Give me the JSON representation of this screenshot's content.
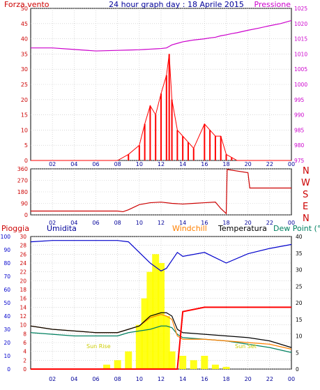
{
  "header": {
    "left_label": "Forza vento",
    "title": "24 hour graph day : 18 Aprile 2015",
    "right_label": "Pressione"
  },
  "x_ticks": [
    "02",
    "04",
    "06",
    "08",
    "10",
    "12",
    "14",
    "16",
    "18",
    "20",
    "22",
    "00"
  ],
  "colors": {
    "wind": "#ff0000",
    "wind_avg": "#0000cc",
    "wind_calm": "#008000",
    "pressure": "#cc00cc",
    "direction": "#cc0000",
    "rain": "#ff0000",
    "humidity": "#0000cc",
    "windchill": "#ff8000",
    "temperature": "#000000",
    "dewpoint": "#008060",
    "solar": "#ffff00",
    "grid": "#c0c0c0"
  },
  "chart_data": [
    {
      "type": "line",
      "title": "Forza vento / Pressione",
      "x": [
        "00",
        "02",
        "04",
        "06",
        "08",
        "09",
        "10",
        "10:30",
        "11",
        "11:30",
        "12",
        "12:30",
        "12:45",
        "13",
        "13:30",
        "14",
        "14:30",
        "15",
        "16",
        "16:30",
        "17",
        "17:30",
        "18",
        "18:30",
        "19",
        "20",
        "21",
        "22",
        "23",
        "24"
      ],
      "series": [
        {
          "name": "Forza vento",
          "axis": "left",
          "values": [
            0,
            0,
            0,
            0,
            0,
            2,
            5,
            12,
            18,
            15,
            22,
            28,
            35,
            20,
            10,
            8,
            6,
            4,
            12,
            10,
            8,
            8,
            2,
            1,
            0,
            0,
            0,
            0,
            0,
            0
          ]
        },
        {
          "name": "Pressione",
          "axis": "right",
          "values": [
            1012,
            1012,
            1011.5,
            1011,
            1011.2,
            1011.3,
            1011.4,
            1011.5,
            1011.6,
            1011.7,
            1011.8,
            1012,
            1012.5,
            1013,
            1013.5,
            1014,
            1014.3,
            1014.6,
            1015,
            1015.3,
            1015.5,
            1016,
            1016.3,
            1016.7,
            1017,
            1017.8,
            1018.5,
            1019.3,
            1020,
            1021
          ]
        }
      ],
      "yleft_ticks": [
        "0",
        "5",
        "10",
        "15",
        "20",
        "25",
        "30",
        "35",
        "40",
        "45",
        "50"
      ],
      "yright_ticks": [
        "975",
        "980",
        "985",
        "990",
        "995",
        "1000",
        "1005",
        "1010",
        "1015",
        "1020",
        "1025"
      ],
      "ylim_left": [
        0,
        50
      ],
      "ylim_right": [
        975,
        1025
      ]
    },
    {
      "type": "line",
      "title": "Direzione vento",
      "x": [
        "00",
        "08",
        "08:30",
        "09",
        "10",
        "11",
        "12",
        "13",
        "14",
        "15",
        "16",
        "17",
        "17:30",
        "18",
        "18:05",
        "20",
        "20:10",
        "24"
      ],
      "series": [
        {
          "name": "Direzione",
          "values": [
            30,
            30,
            25,
            40,
            80,
            95,
            100,
            90,
            85,
            90,
            95,
            100,
            50,
            10,
            355,
            330,
            210,
            210
          ]
        }
      ],
      "y_ticks": [
        "0",
        "90",
        "180",
        "270",
        "360"
      ],
      "ylim": [
        0,
        360
      ],
      "compass": [
        "N",
        "W",
        "S",
        "E",
        "N"
      ]
    },
    {
      "type": "line",
      "title": "Pioggia / Umidita / Temperatura",
      "series_labels": [
        "Pioggia",
        "Umidita",
        "Windchill",
        "Temperatura",
        "Dew Point (°C"
      ],
      "x": [
        "00",
        "02",
        "04",
        "06",
        "08",
        "09",
        "10",
        "11",
        "12",
        "12:30",
        "13",
        "13:30",
        "14",
        "16",
        "18",
        "20",
        "22",
        "24"
      ],
      "series": [
        {
          "name": "Umidita",
          "axis": "far-left",
          "values": [
            96,
            97,
            97,
            97,
            97,
            96,
            88,
            80,
            74,
            76,
            82,
            88,
            85,
            88,
            80,
            87,
            91,
            94
          ]
        },
        {
          "name": "Temperatura",
          "axis": "right",
          "values": [
            13,
            12,
            11.5,
            11,
            11,
            12,
            13,
            16,
            17,
            17,
            16,
            12,
            11,
            10.5,
            10,
            9.5,
            8.5,
            6.5
          ]
        },
        {
          "name": "Windchill",
          "axis": "right",
          "values": [
            13,
            12,
            11.5,
            11,
            11,
            12,
            13,
            15.5,
            16.5,
            16,
            15,
            10,
            9,
            9,
            8.5,
            8,
            7.5,
            6
          ]
        },
        {
          "name": "Dew Point",
          "axis": "right",
          "values": [
            11,
            10.5,
            10,
            10,
            10,
            11,
            11.5,
            12,
            13,
            13,
            12.5,
            10.5,
            9.5,
            9,
            8.5,
            7.5,
            6.5,
            5
          ]
        },
        {
          "name": "Pioggia",
          "axis": "left",
          "values": [
            0,
            0,
            0,
            0,
            0,
            0,
            0,
            0,
            0,
            0,
            0,
            0,
            13,
            14,
            14,
            14,
            14,
            14
          ]
        }
      ],
      "yfar_left_ticks": [
        "0",
        "10",
        "20",
        "30",
        "40",
        "50",
        "60",
        "70",
        "80",
        "90",
        "100"
      ],
      "yleft_ticks": [
        "0",
        "2",
        "4",
        "6",
        "8",
        "10",
        "12",
        "14",
        "16",
        "18",
        "20",
        "22",
        "24",
        "26",
        "28",
        "30"
      ],
      "yright_ticks": [
        "0",
        "5",
        "10",
        "15",
        "20",
        "25",
        "30",
        "35",
        "40"
      ],
      "ylim_far_left": [
        0,
        100
      ],
      "ylim_left": [
        0,
        30
      ],
      "ylim_right": [
        0,
        40
      ],
      "annotations": [
        "Sun Rise",
        "Sun Set"
      ]
    }
  ]
}
